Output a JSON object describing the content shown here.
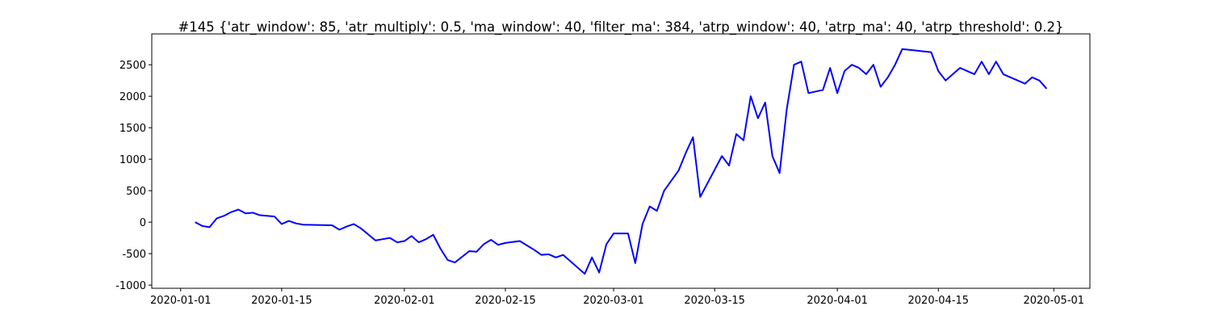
{
  "chart_data": {
    "type": "line",
    "title": "#145 {'atr_window': 85, 'atr_multiply': 0.5, 'ma_window': 40, 'filter_ma': 384, 'atrp_window': 40, 'atrp_ma': 40, 'atrp_threshold': 0.2}",
    "x": [
      "2020-01-03",
      "2020-01-04",
      "2020-01-05",
      "2020-01-06",
      "2020-01-07",
      "2020-01-08",
      "2020-01-09",
      "2020-01-10",
      "2020-01-11",
      "2020-01-12",
      "2020-01-14",
      "2020-01-15",
      "2020-01-16",
      "2020-01-17",
      "2020-01-18",
      "2020-01-22",
      "2020-01-23",
      "2020-01-24",
      "2020-01-25",
      "2020-01-26",
      "2020-01-28",
      "2020-01-29",
      "2020-01-30",
      "2020-01-31",
      "2020-02-01",
      "2020-02-02",
      "2020-02-03",
      "2020-02-04",
      "2020-02-05",
      "2020-02-06",
      "2020-02-07",
      "2020-02-08",
      "2020-02-10",
      "2020-02-11",
      "2020-02-12",
      "2020-02-13",
      "2020-02-14",
      "2020-02-15",
      "2020-02-17",
      "2020-02-18",
      "2020-02-19",
      "2020-02-20",
      "2020-02-21",
      "2020-02-22",
      "2020-02-23",
      "2020-02-25",
      "2020-02-26",
      "2020-02-27",
      "2020-02-28",
      "2020-02-29",
      "2020-03-01",
      "2020-03-03",
      "2020-03-04",
      "2020-03-05",
      "2020-03-06",
      "2020-03-07",
      "2020-03-08",
      "2020-03-10",
      "2020-03-11",
      "2020-03-12",
      "2020-03-13",
      "2020-03-16",
      "2020-03-17",
      "2020-03-18",
      "2020-03-19",
      "2020-03-20",
      "2020-03-21",
      "2020-03-22",
      "2020-03-23",
      "2020-03-24",
      "2020-03-25",
      "2020-03-26",
      "2020-03-27",
      "2020-03-28",
      "2020-03-30",
      "2020-03-31",
      "2020-04-01",
      "2020-04-02",
      "2020-04-03",
      "2020-04-04",
      "2020-04-05",
      "2020-04-06",
      "2020-04-07",
      "2020-04-08",
      "2020-04-09",
      "2020-04-10",
      "2020-04-14",
      "2020-04-15",
      "2020-04-16",
      "2020-04-17",
      "2020-04-18",
      "2020-04-20",
      "2020-04-21",
      "2020-04-22",
      "2020-04-23",
      "2020-04-24",
      "2020-04-26",
      "2020-04-27",
      "2020-04-28",
      "2020-04-29",
      "2020-04-30"
    ],
    "series": [
      {
        "color": "#0000ff",
        "values": [
          0,
          -60,
          -80,
          60,
          100,
          160,
          200,
          140,
          150,
          110,
          90,
          -30,
          20,
          -20,
          -40,
          -50,
          -120,
          -70,
          -30,
          -100,
          -290,
          -270,
          -250,
          -320,
          -300,
          -220,
          -320,
          -270,
          -200,
          -420,
          -600,
          -640,
          -460,
          -470,
          -350,
          -280,
          -360,
          -330,
          -300,
          -370,
          -440,
          -520,
          -510,
          -560,
          -520,
          -720,
          -820,
          -560,
          -800,
          -350,
          -180,
          -180,
          -650,
          -30,
          250,
          180,
          500,
          820,
          1100,
          1350,
          400,
          1050,
          900,
          1400,
          1300,
          2000,
          1650,
          1900,
          1050,
          780,
          1800,
          2500,
          2550,
          2050,
          2100,
          2450,
          2050,
          2400,
          2500,
          2450,
          2350,
          2500,
          2150,
          2300,
          2500,
          2750,
          2700,
          2400,
          2250,
          2350,
          2450,
          2350,
          2550,
          2350,
          2550,
          2350,
          2250,
          2200,
          2300,
          2250,
          2120
        ]
      }
    ],
    "xlim": [
      "2019-12-28",
      "2020-05-06"
    ],
    "xticks": [
      "2020-01-01",
      "2020-01-15",
      "2020-02-01",
      "2020-02-15",
      "2020-03-01",
      "2020-03-15",
      "2020-04-01",
      "2020-04-15",
      "2020-05-01"
    ],
    "ylim": [
      -1050,
      2990
    ],
    "yticks": [
      -1000,
      -500,
      0,
      500,
      1000,
      1500,
      2000,
      2500
    ]
  }
}
